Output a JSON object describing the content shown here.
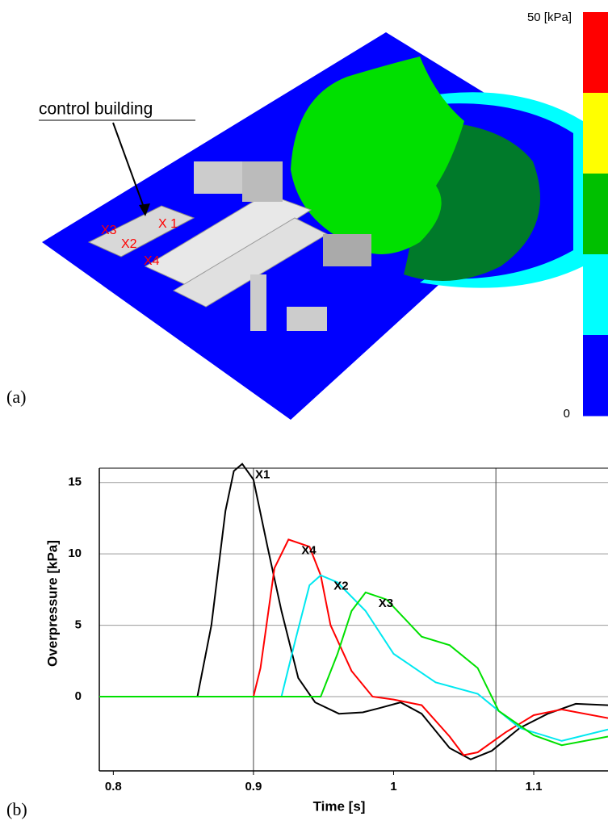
{
  "panel_a": {
    "label": "(a)",
    "annotation": "control building",
    "markers": [
      "X3",
      "X2",
      "X 1",
      "X4"
    ],
    "colorbar": {
      "max_label": "50 [kPa]",
      "min_label": "0",
      "colors": [
        "#ff0000",
        "#ffff00",
        "#00c000",
        "#00ffff",
        "#0000ff"
      ]
    }
  },
  "chart_data": {
    "type": "line",
    "panel_label": "(b)",
    "x_label": "Time [s]",
    "y_label": "Overpressure [kPa]",
    "xlim": [
      0.79,
      1.153
    ],
    "ylim": [
      -5.2,
      16
    ],
    "xticks": [
      0.8,
      0.9,
      1.0,
      1.1
    ],
    "yticks": [
      0,
      5,
      10,
      15
    ],
    "x_reference_lines": [
      0.9,
      1.073
    ],
    "grid": true,
    "series": [
      {
        "name": "X1",
        "color": "#000000",
        "x": [
          0.79,
          0.86,
          0.87,
          0.88,
          0.886,
          0.892,
          0.9,
          0.91,
          0.92,
          0.932,
          0.944,
          0.961,
          0.978,
          0.99,
          1.005,
          1.02,
          1.04,
          1.055,
          1.07,
          1.09,
          1.11,
          1.13,
          1.153
        ],
        "values": [
          0,
          0,
          5,
          13,
          15.8,
          16.3,
          15.2,
          10.5,
          6,
          1.3,
          -0.4,
          -1.2,
          -1.1,
          -0.8,
          -0.4,
          -1.2,
          -3.6,
          -4.4,
          -3.8,
          -2.2,
          -1.2,
          -0.5,
          -0.6
        ]
      },
      {
        "name": "X4",
        "color": "#ff0000",
        "x": [
          0.79,
          0.9,
          0.905,
          0.915,
          0.925,
          0.94,
          0.948,
          0.955,
          0.97,
          0.985,
          1.0,
          1.02,
          1.04,
          1.05,
          1.06,
          1.08,
          1.1,
          1.12,
          1.153
        ],
        "values": [
          0,
          0,
          2,
          9,
          11,
          10.5,
          8.5,
          5,
          1.8,
          0,
          -0.2,
          -0.6,
          -2.8,
          -4.1,
          -3.9,
          -2.5,
          -1.3,
          -0.9,
          -1.5
        ]
      },
      {
        "name": "X2",
        "color": "#00e8f0",
        "x": [
          0.79,
          0.92,
          0.93,
          0.94,
          0.948,
          0.96,
          0.98,
          1.0,
          1.03,
          1.06,
          1.075,
          1.09,
          1.12,
          1.153
        ],
        "values": [
          0,
          0,
          4,
          7.8,
          8.5,
          8,
          6,
          3,
          1,
          0.2,
          -1,
          -2.2,
          -3.1,
          -2.3
        ]
      },
      {
        "name": "X3",
        "color": "#00e000",
        "x": [
          0.79,
          0.948,
          0.96,
          0.97,
          0.98,
          0.995,
          1.02,
          1.04,
          1.06,
          1.075,
          1.1,
          1.12,
          1.153
        ],
        "values": [
          0,
          0,
          3,
          6,
          7.3,
          6.8,
          4.2,
          3.6,
          2,
          -1,
          -2.7,
          -3.4,
          -2.8
        ]
      }
    ]
  }
}
